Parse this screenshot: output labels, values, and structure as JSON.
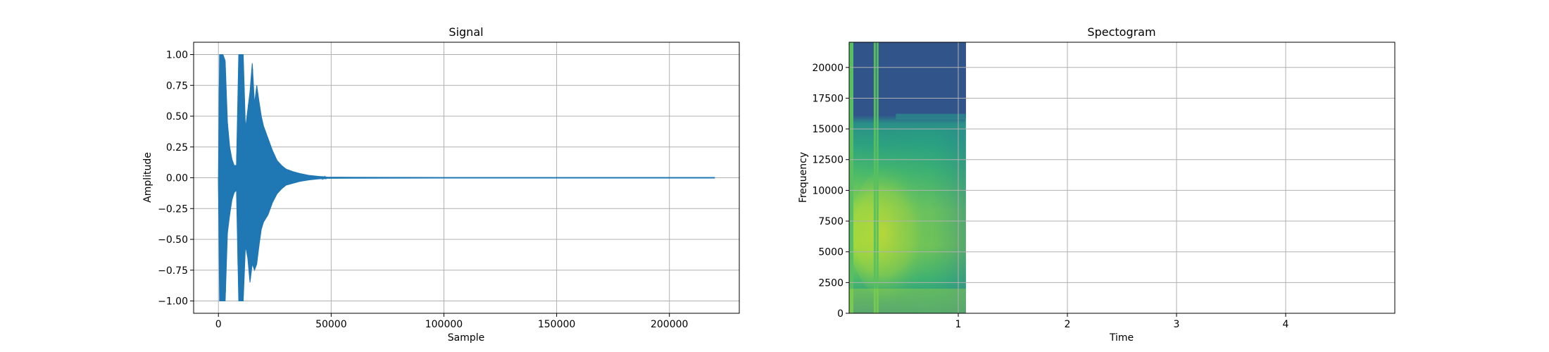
{
  "chart_data": [
    {
      "type": "line",
      "title": "Signal",
      "xlabel": "Sample",
      "ylabel": "Amplitude",
      "xlim": [
        -11000,
        231000
      ],
      "ylim": [
        -1.1,
        1.1
      ],
      "xticks": [
        0,
        50000,
        100000,
        150000,
        200000
      ],
      "xtick_labels": [
        "0",
        "50000",
        "100000",
        "150000",
        "200000"
      ],
      "yticks": [
        -1.0,
        -0.75,
        -0.5,
        -0.25,
        0.0,
        0.25,
        0.5,
        0.75,
        1.0
      ],
      "ytick_labels": [
        "−1.00",
        "−0.75",
        "−0.50",
        "−0.25",
        "0.00",
        "0.25",
        "0.50",
        "0.75",
        "1.00"
      ],
      "grid": true,
      "series_color": "#1f77b4",
      "envelope": {
        "x": [
          0,
          500,
          1000,
          2000,
          3000,
          4000,
          5000,
          6000,
          7000,
          8000,
          9000,
          10000,
          11000,
          12000,
          13000,
          14000,
          15000,
          16000,
          17000,
          18000,
          19000,
          20000,
          22000,
          24000,
          26000,
          28000,
          30000,
          33000,
          36000,
          40000,
          44000,
          48000,
          60000,
          100000,
          150000,
          200000,
          220000
        ],
        "upper": [
          0.0,
          1.0,
          1.0,
          1.0,
          0.95,
          0.45,
          0.25,
          0.15,
          0.1,
          0.1,
          1.0,
          1.0,
          1.0,
          0.4,
          0.55,
          0.7,
          0.93,
          0.6,
          0.75,
          0.62,
          0.5,
          0.42,
          0.32,
          0.22,
          0.14,
          0.1,
          0.07,
          0.05,
          0.035,
          0.02,
          0.012,
          0.006,
          0.004,
          0.003,
          0.003,
          0.003,
          0.003
        ],
        "lower": [
          0.0,
          -1.0,
          -1.0,
          -1.0,
          -1.0,
          -0.45,
          -0.3,
          -0.18,
          -0.12,
          -0.1,
          -1.0,
          -1.0,
          -1.0,
          -0.55,
          -0.65,
          -0.85,
          -0.7,
          -0.75,
          -0.7,
          -0.55,
          -0.42,
          -0.36,
          -0.3,
          -0.2,
          -0.13,
          -0.09,
          -0.06,
          -0.045,
          -0.03,
          -0.018,
          -0.01,
          -0.005,
          -0.004,
          -0.003,
          -0.003,
          -0.003,
          -0.003
        ]
      }
    },
    {
      "type": "heatmap",
      "title": "Spectogram",
      "xlabel": "Time",
      "ylabel": "Frequency",
      "xlim": [
        0,
        5.0
      ],
      "ylim": [
        0,
        22050
      ],
      "xticks": [
        1,
        2,
        3,
        4
      ],
      "xtick_labels": [
        "1",
        "2",
        "3",
        "4"
      ],
      "yticks": [
        0,
        2500,
        5000,
        7500,
        10000,
        12500,
        15000,
        17500,
        20000
      ],
      "ytick_labels": [
        "0",
        "2500",
        "5000",
        "7500",
        "10000",
        "12500",
        "15000",
        "17500",
        "20000"
      ],
      "grid": true,
      "colormap": "viridis",
      "content_time_range": [
        0,
        1.07
      ],
      "colors": {
        "dark": "#31558b",
        "mid": "#2a8a8c",
        "teal": "#23a083",
        "green": "#58c060",
        "yellowgreen": "#b5dc36",
        "yellow": "#d4e12c"
      }
    }
  ]
}
